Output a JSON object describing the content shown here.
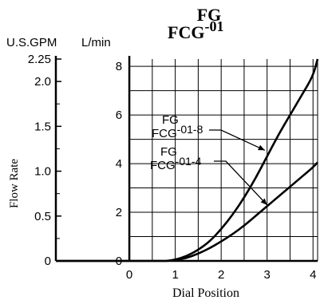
{
  "chart_data": {
    "type": "line",
    "title_line1": "FG",
    "title_line2_main": "FCG",
    "title_line2_sup": "-01",
    "xlabel": "Dial Position",
    "ylabel": "Flow Rate",
    "unit_left": "U.S.GPM",
    "unit_right": "L/min",
    "xlim": [
      -1.6,
      4.1
    ],
    "ylim_lmin": [
      0,
      8.3
    ],
    "x_ticks": [
      "0",
      "1",
      "2",
      "3",
      "4"
    ],
    "x_tick_values": [
      0,
      1,
      2,
      3,
      4
    ],
    "lmin_ticks": [
      "0",
      "2",
      "4",
      "6",
      "8"
    ],
    "lmin_tick_values": [
      0,
      2,
      4,
      6,
      8
    ],
    "gpm_ticks": [
      "0",
      "0.5",
      "1.0",
      "1.5",
      "2.0",
      "2.25"
    ],
    "gpm_tick_values": [
      0,
      0.5,
      1.0,
      1.5,
      2.0,
      2.25
    ],
    "grid": true,
    "series": [
      {
        "name_top": "FG",
        "name_main": "FCG",
        "name_sup": "-01-8",
        "x": [
          0.8,
          1.0,
          1.25,
          1.5,
          1.75,
          2.0,
          2.25,
          2.5,
          2.75,
          3.0,
          3.25,
          3.5,
          3.75,
          4.0,
          4.1
        ],
        "y": [
          0,
          0.05,
          0.2,
          0.45,
          0.8,
          1.3,
          1.9,
          2.6,
          3.4,
          4.3,
          5.2,
          6.0,
          6.8,
          7.6,
          8.3
        ]
      },
      {
        "name_top": "FG",
        "name_main": "FCG",
        "name_sup": "-01-4",
        "x": [
          0.8,
          1.0,
          1.25,
          1.5,
          1.75,
          2.0,
          2.25,
          2.5,
          2.75,
          3.0,
          3.25,
          3.5,
          3.75,
          4.0,
          4.1
        ],
        "y": [
          0,
          0.03,
          0.12,
          0.3,
          0.52,
          0.8,
          1.1,
          1.45,
          1.85,
          2.25,
          2.65,
          3.05,
          3.45,
          3.85,
          4.05
        ]
      }
    ]
  }
}
